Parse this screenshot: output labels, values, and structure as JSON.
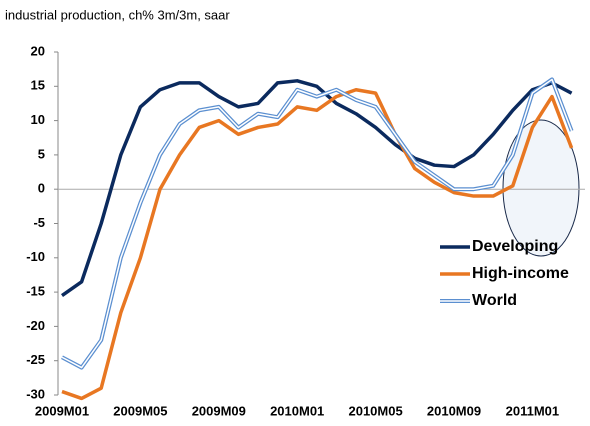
{
  "chart_data": {
    "type": "line",
    "title": "industrial production, ch% 3m/3m, saar",
    "categories": [
      "2009M01",
      null,
      null,
      null,
      "2009M05",
      null,
      null,
      null,
      "2009M09",
      null,
      null,
      null,
      "2010M01",
      null,
      null,
      null,
      "2010M05",
      null,
      null,
      null,
      "2010M09",
      null,
      null,
      null,
      "2011M01",
      null,
      null
    ],
    "series": [
      {
        "name": "Developing",
        "color": "#0b2a5e",
        "values": [
          -15.5,
          -13.5,
          -5,
          5,
          12,
          14.5,
          15.5,
          15.5,
          13.5,
          12,
          12.5,
          15.5,
          15.8,
          15,
          12.5,
          11,
          9,
          6.5,
          4.5,
          3.5,
          3.3,
          5,
          8,
          11.5,
          14.5,
          15.5,
          14
        ]
      },
      {
        "name": "High-income",
        "color": "#e87722",
        "values": [
          -29.5,
          -30.5,
          -29,
          -18,
          -10,
          0,
          5,
          9,
          10,
          8,
          9,
          9.5,
          12,
          11.5,
          13.5,
          14.5,
          14,
          8,
          3,
          1,
          -0.5,
          -1,
          -1,
          0.5,
          9,
          13.5,
          6
        ]
      },
      {
        "name": "World",
        "color": "#5b8fd0",
        "values": [
          -24.5,
          -26,
          -22,
          -10,
          -2,
          5,
          9.5,
          11.5,
          12,
          9,
          11,
          10.5,
          14.5,
          13.5,
          14.5,
          13,
          12,
          8,
          4,
          2,
          0,
          0,
          0.5,
          5,
          14,
          16,
          8.5
        ]
      }
    ],
    "ylim": [
      -30,
      20
    ],
    "yticks": [
      -30,
      -25,
      -20,
      -15,
      -10,
      -5,
      0,
      5,
      10,
      15,
      20
    ],
    "legend": "right"
  }
}
